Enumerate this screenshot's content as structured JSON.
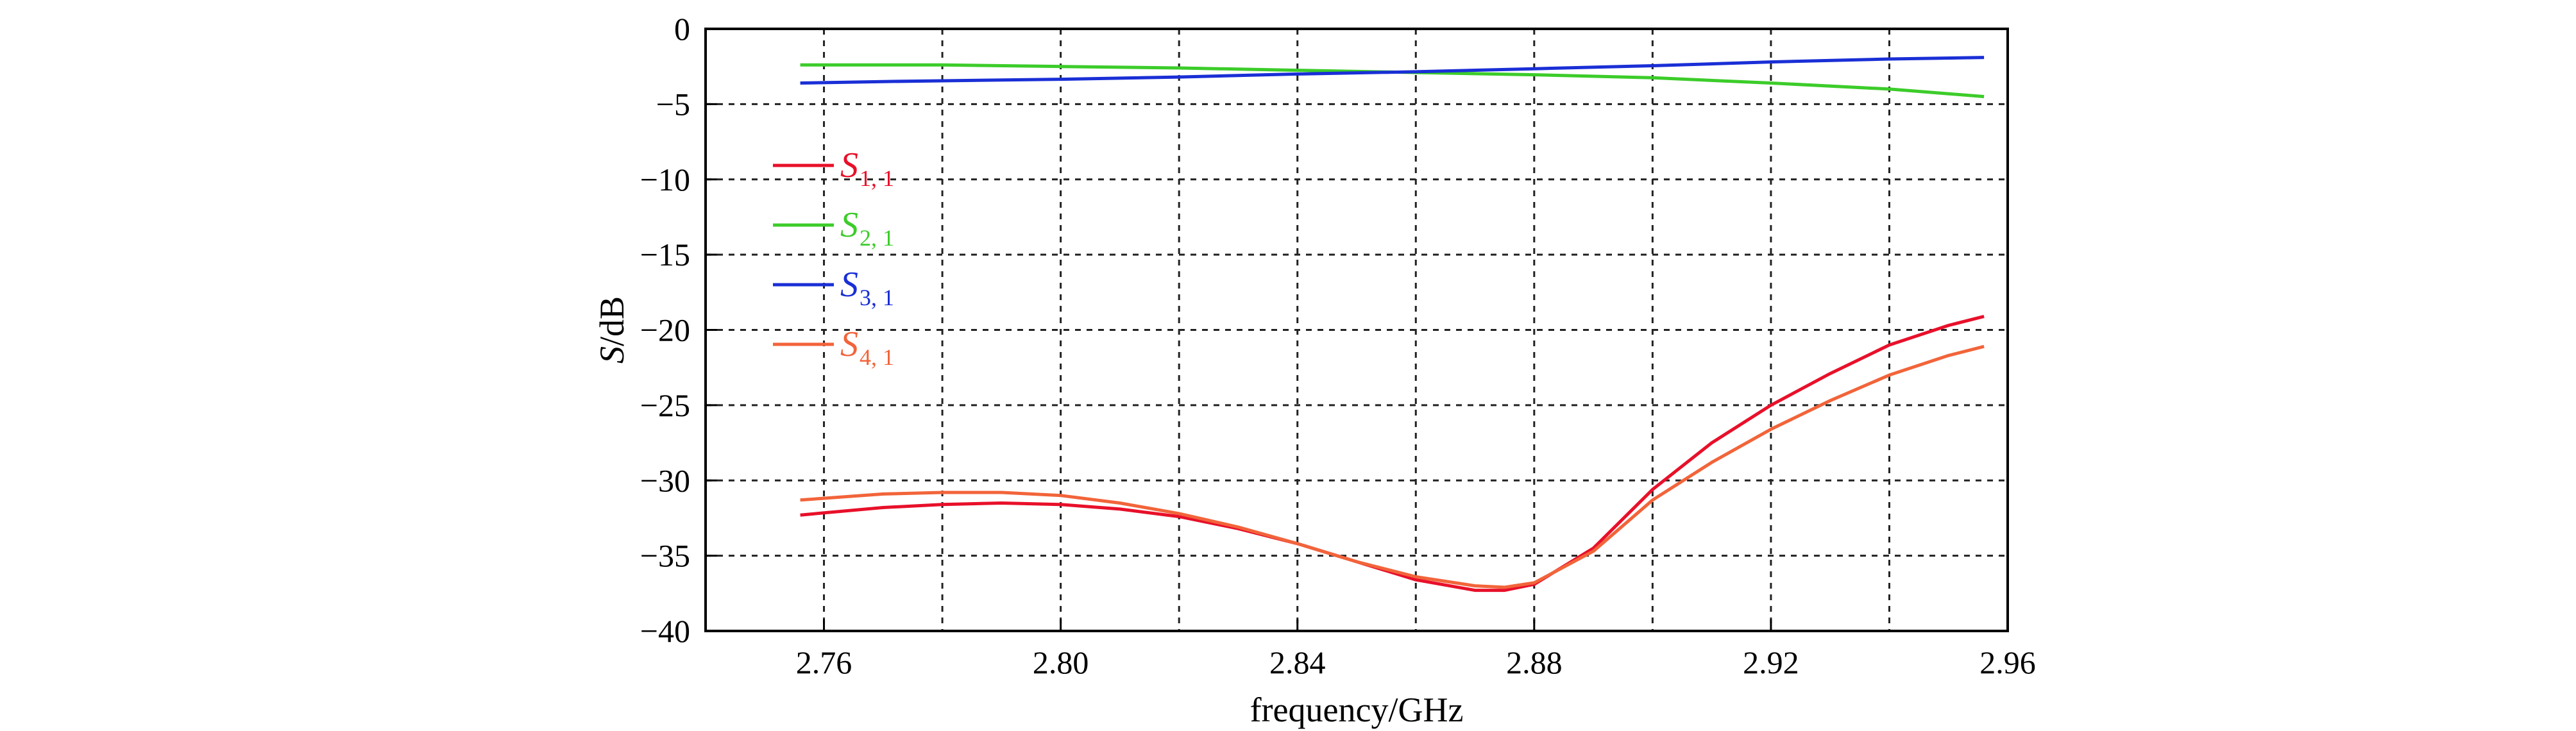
{
  "chart_data": {
    "type": "line",
    "xlabel": "frequency/GHz",
    "ylabel": "S/dB",
    "xlim": [
      2.74,
      2.96
    ],
    "ylim": [
      -40,
      0
    ],
    "xticks": [
      2.76,
      2.8,
      2.84,
      2.88,
      2.92,
      2.96
    ],
    "xtick_labels": [
      "2.76",
      "2.80",
      "2.84",
      "2.88",
      "2.92",
      "2.96"
    ],
    "yticks": [
      0,
      -5,
      -10,
      -15,
      -20,
      -25,
      -30,
      -35,
      -40
    ],
    "ytick_labels": [
      "0",
      "−5",
      "−10",
      "−15",
      "−20",
      "−25",
      "−30",
      "−35",
      "−40"
    ],
    "grid": true,
    "legend_position": "left",
    "series": [
      {
        "name": "S1,1",
        "label_main": "S",
        "label_sub": "1, 1",
        "color": "#e8102a",
        "x": [
          2.756,
          2.77,
          2.78,
          2.79,
          2.8,
          2.81,
          2.82,
          2.83,
          2.84,
          2.85,
          2.86,
          2.87,
          2.875,
          2.88,
          2.89,
          2.9,
          2.91,
          2.92,
          2.93,
          2.94,
          2.95,
          2.956
        ],
        "y": [
          -32.3,
          -31.8,
          -31.6,
          -31.5,
          -31.6,
          -31.9,
          -32.4,
          -33.2,
          -34.2,
          -35.4,
          -36.6,
          -37.3,
          -37.3,
          -36.9,
          -34.5,
          -30.6,
          -27.5,
          -25.0,
          -22.9,
          -21.0,
          -19.7,
          -19.1
        ]
      },
      {
        "name": "S2,1",
        "label_main": "S",
        "label_sub": "2, 1",
        "color": "#3ccc2a",
        "x": [
          2.756,
          2.77,
          2.78,
          2.8,
          2.82,
          2.84,
          2.86,
          2.88,
          2.9,
          2.92,
          2.94,
          2.956
        ],
        "y": [
          -2.4,
          -2.4,
          -2.4,
          -2.5,
          -2.6,
          -2.75,
          -2.9,
          -3.05,
          -3.25,
          -3.6,
          -4.0,
          -4.5
        ]
      },
      {
        "name": "S3,1",
        "label_main": "S",
        "label_sub": "3, 1",
        "color": "#1a2fd6",
        "x": [
          2.756,
          2.77,
          2.78,
          2.8,
          2.82,
          2.84,
          2.86,
          2.88,
          2.9,
          2.92,
          2.94,
          2.956
        ],
        "y": [
          -3.6,
          -3.5,
          -3.45,
          -3.35,
          -3.2,
          -3.0,
          -2.85,
          -2.65,
          -2.45,
          -2.2,
          -2.0,
          -1.9
        ]
      },
      {
        "name": "S4,1",
        "label_main": "S",
        "label_sub": "4, 1",
        "color": "#f2643a",
        "x": [
          2.756,
          2.77,
          2.78,
          2.79,
          2.8,
          2.81,
          2.82,
          2.83,
          2.84,
          2.85,
          2.86,
          2.87,
          2.875,
          2.88,
          2.89,
          2.9,
          2.91,
          2.92,
          2.93,
          2.94,
          2.95,
          2.956
        ],
        "y": [
          -31.3,
          -30.9,
          -30.8,
          -30.8,
          -31.0,
          -31.5,
          -32.2,
          -33.1,
          -34.2,
          -35.4,
          -36.4,
          -37.0,
          -37.1,
          -36.8,
          -34.7,
          -31.3,
          -28.8,
          -26.6,
          -24.7,
          -23.0,
          -21.7,
          -21.1
        ]
      }
    ]
  }
}
